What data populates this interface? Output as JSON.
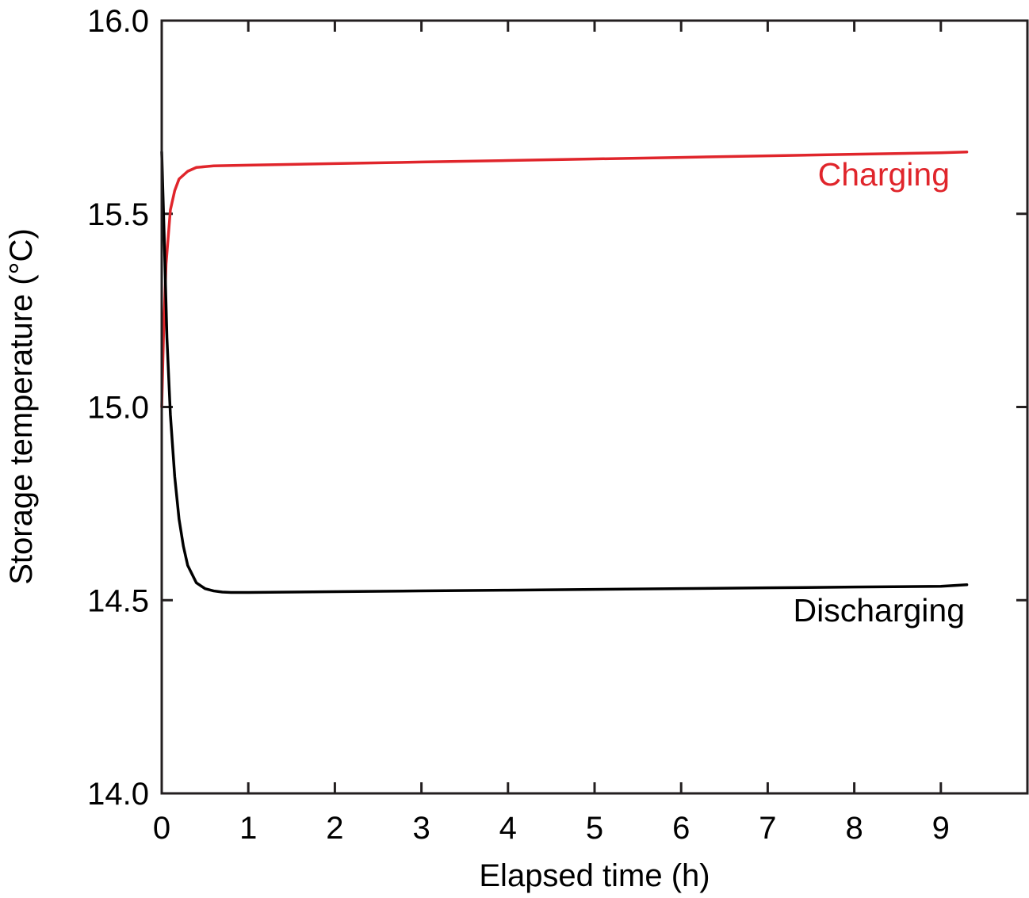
{
  "chart_data": {
    "type": "line",
    "xlabel": "Elapsed time (h)",
    "ylabel": "Storage temperature (°C)",
    "xlim": [
      0,
      10
    ],
    "ylim": [
      14.0,
      16.0
    ],
    "xticks": [
      0,
      1,
      2,
      3,
      4,
      5,
      6,
      7,
      8,
      9
    ],
    "xtick_labels": [
      "0",
      "1",
      "2",
      "3",
      "4",
      "5",
      "6",
      "7",
      "8",
      "9"
    ],
    "yticks": [
      14.0,
      14.5,
      15.0,
      15.5,
      16.0
    ],
    "ytick_labels": [
      "14.0",
      "14.5",
      "15.0",
      "15.5",
      "16.0"
    ],
    "grid": false,
    "legend": "none",
    "series": [
      {
        "name": "Charging",
        "color": "#e0252b",
        "x": [
          0,
          0.02,
          0.05,
          0.1,
          0.15,
          0.2,
          0.3,
          0.4,
          0.5,
          0.6,
          1,
          2,
          3,
          4,
          5,
          6,
          7,
          8,
          9,
          9.3
        ],
        "y": [
          15.0,
          15.18,
          15.37,
          15.51,
          15.56,
          15.59,
          15.61,
          15.62,
          15.622,
          15.624,
          15.626,
          15.63,
          15.634,
          15.638,
          15.642,
          15.646,
          15.65,
          15.654,
          15.658,
          15.66
        ]
      },
      {
        "name": "Discharging",
        "color": "#000000",
        "x": [
          0,
          0.03,
          0.06,
          0.1,
          0.15,
          0.2,
          0.25,
          0.3,
          0.4,
          0.5,
          0.6,
          0.7,
          0.8,
          1,
          2,
          3,
          4,
          5,
          6,
          7,
          8,
          9,
          9.3
        ],
        "y": [
          15.66,
          15.43,
          15.18,
          14.98,
          14.82,
          14.71,
          14.64,
          14.59,
          14.545,
          14.53,
          14.524,
          14.521,
          14.52,
          14.52,
          14.522,
          14.524,
          14.526,
          14.528,
          14.53,
          14.532,
          14.534,
          14.536,
          14.54
        ]
      }
    ]
  }
}
